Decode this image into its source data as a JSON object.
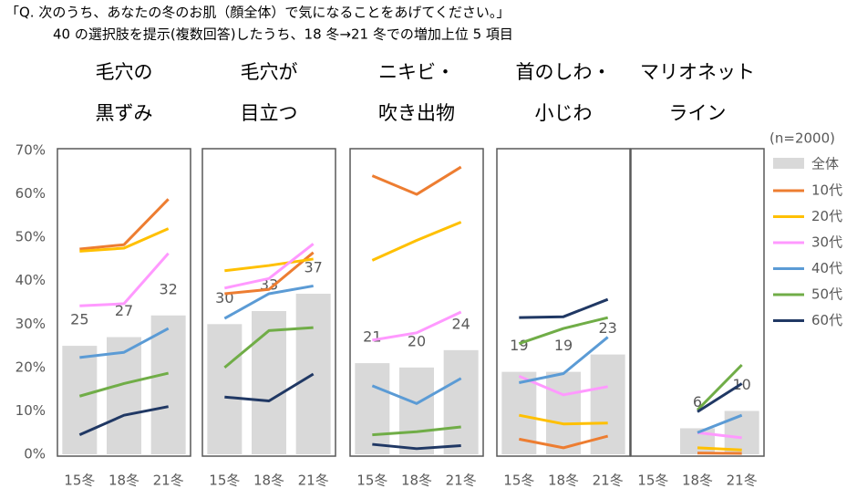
{
  "chart_data": {
    "type": "bar-line",
    "title": "「Q. 次のうち、あなたの冬のお肌（顔全体）で気になることをあげてください。」",
    "subtitle": "40 の選択肢を提示(複数回答)したうち、18 冬→21 冬での増加上位 5 項目",
    "note": "(n=2000)",
    "categories": [
      "15冬",
      "18冬",
      "21冬"
    ],
    "ylim": [
      0,
      70
    ],
    "yticks": [
      {
        "value": 0,
        "label": "0%"
      },
      {
        "value": 10,
        "label": "10%"
      },
      {
        "value": 20,
        "label": "20%"
      },
      {
        "value": 30,
        "label": "30%"
      },
      {
        "value": 40,
        "label": "40%"
      },
      {
        "value": 50,
        "label": "50%"
      },
      {
        "value": 60,
        "label": "60%"
      },
      {
        "value": 70,
        "label": "70%"
      }
    ],
    "bar_series": {
      "name": "全体",
      "color": "#d9d9d9"
    },
    "line_series": [
      {
        "name": "10代",
        "color": "#ed7d31"
      },
      {
        "name": "20代",
        "color": "#ffc000"
      },
      {
        "name": "30代",
        "color": "#ff99ff"
      },
      {
        "name": "40代",
        "color": "#5b9bd5"
      },
      {
        "name": "50代",
        "color": "#70ad47"
      },
      {
        "name": "60代",
        "color": "#203864"
      }
    ],
    "panels": [
      {
        "title": [
          "毛穴の",
          "黒ずみ"
        ],
        "bar_values": [
          25,
          27,
          32
        ],
        "line_values": [
          [
            47.3,
            48.3,
            58.8
          ],
          [
            46.8,
            47.5,
            52
          ],
          [
            34.2,
            34.7,
            46.3
          ],
          [
            22.3,
            23.5,
            29
          ],
          [
            13.4,
            16.3,
            18.7
          ],
          [
            4.5,
            9,
            11
          ]
        ]
      },
      {
        "title": [
          "毛穴が",
          "目立つ"
        ],
        "bar_values": [
          30,
          33,
          37
        ],
        "line_values": [
          [
            37,
            38,
            46.5
          ],
          [
            42.3,
            43.5,
            45
          ],
          [
            38.3,
            40.5,
            48.5
          ],
          [
            31.3,
            37,
            38.8
          ],
          [
            20,
            28.5,
            29.2
          ],
          [
            13.2,
            12.3,
            18.5
          ]
        ]
      },
      {
        "title": [
          "ニキビ・",
          "吹き出物"
        ],
        "bar_values": [
          21,
          20,
          24
        ],
        "line_values": [
          [
            64.2,
            59.9,
            66.2
          ],
          [
            44.7,
            49.3,
            53.5
          ],
          [
            26.3,
            28,
            32.8
          ],
          [
            15.8,
            11.7,
            17.5
          ],
          [
            4.5,
            5.2,
            6.3
          ],
          [
            2.3,
            1.3,
            2
          ]
        ]
      },
      {
        "title": [
          "首のしわ・",
          "小じわ"
        ],
        "bar_values": [
          19,
          19,
          23
        ],
        "line_values": [
          [
            3.5,
            1.5,
            4.2
          ],
          [
            9,
            7,
            7.2
          ],
          [
            18,
            13.7,
            15.6
          ],
          [
            16.5,
            18.6,
            27
          ],
          [
            25.5,
            29,
            31.5
          ],
          [
            31.5,
            31.7,
            35.7
          ]
        ]
      },
      {
        "title": [
          "マリオネット",
          "ライン"
        ],
        "bar_values": [
          null,
          6,
          10
        ],
        "line_values": [
          [
            null,
            0.3,
            0.2
          ],
          [
            null,
            1.5,
            1
          ],
          [
            null,
            5,
            3.8
          ],
          [
            null,
            5,
            9
          ],
          [
            null,
            10.2,
            20.6
          ],
          [
            null,
            9.8,
            16.3
          ]
        ]
      }
    ]
  }
}
